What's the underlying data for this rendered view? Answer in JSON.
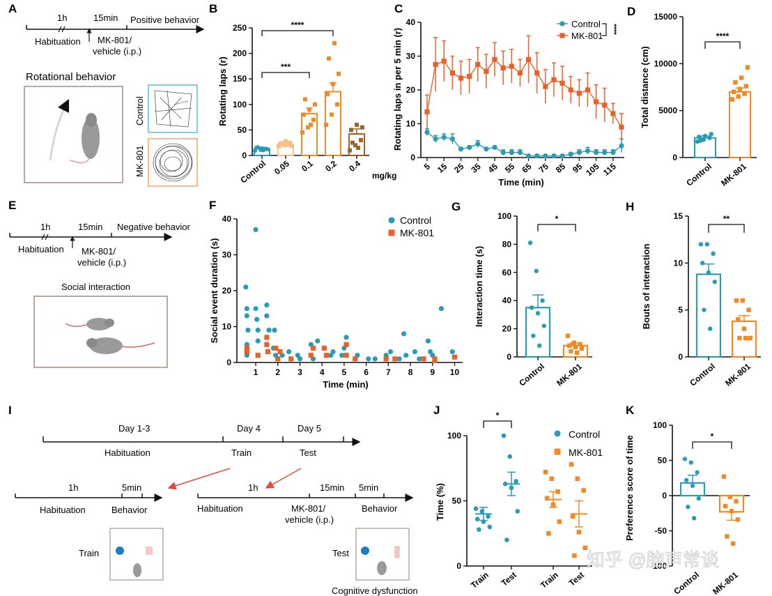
{
  "colors": {
    "control": "#2a9bb5",
    "mk801": "#f08a24",
    "mk801_dark": "#e8612a",
    "dose005": "#f7c08a",
    "dose04": "#a0642a",
    "gray": "#888888"
  },
  "panels": {
    "A": "A",
    "B": "B",
    "C": "C",
    "D": "D",
    "E": "E",
    "F": "F",
    "G": "G",
    "H": "H",
    "I": "I",
    "J": "J",
    "K": "K"
  },
  "schematics": {
    "A": {
      "t1": "1h",
      "t2": "15min",
      "t3": "Positive behavior",
      "hab": "Habituation",
      "drug1": "MK-801/",
      "drug2": "vehicle (i.p.)",
      "box_title": "Rotational behavior",
      "ctrl": "Control",
      "mk": "MK-801"
    },
    "E": {
      "t1": "1h",
      "t2": "15min",
      "t3": "Negative behavior",
      "hab": "Habituation",
      "drug1": "MK-801/",
      "drug2": "vehicle (i.p.)",
      "box_title": "Social interaction"
    },
    "I": {
      "d13": "Day 1-3",
      "d4": "Day 4",
      "d5": "Day 5",
      "hab": "Habituation",
      "train": "Train",
      "test": "Test",
      "l_1h": "1h",
      "l_5min": "5min",
      "l_hab": "Habituation",
      "l_beh": "Behavior",
      "r_1h": "1h",
      "r_15min": "15min",
      "r_5min": "5min",
      "r_hab": "Habituation",
      "r_drug1": "MK-801/",
      "r_drug2": "vehicle (i.p.)",
      "r_beh": "Behavior",
      "train_lbl": "Train",
      "test_lbl": "Test",
      "cog": "Cognitive dysfunction"
    }
  },
  "watermark": "知乎 @脑声常谈",
  "chart_data": [
    {
      "panel": "B",
      "type": "bar",
      "categories": [
        "Control",
        "0.05",
        "0.1",
        "0.2",
        "0.4"
      ],
      "unit": "mg/kg",
      "ylabel": "Rotating laps (r)",
      "ylim": [
        0,
        250
      ],
      "yticks": [
        0,
        50,
        100,
        150,
        200,
        250
      ],
      "values": [
        13,
        22,
        82,
        125,
        42
      ],
      "sem": [
        3,
        4,
        11,
        17,
        10
      ],
      "points": [
        [
          9,
          11,
          13,
          15,
          14,
          12,
          16,
          10
        ],
        [
          18,
          20,
          25,
          22,
          28,
          19,
          24,
          21
        ],
        [
          45,
          55,
          70,
          80,
          90,
          100,
          110,
          60
        ],
        [
          60,
          80,
          100,
          120,
          140,
          160,
          190,
          220
        ],
        [
          10,
          20,
          30,
          50,
          60,
          55,
          25,
          15
        ]
      ],
      "sig": [
        {
          "from": 0,
          "to": 2,
          "label": "***"
        },
        {
          "from": 0,
          "to": 3,
          "label": "****"
        }
      ]
    },
    {
      "panel": "C",
      "type": "line",
      "x": [
        5,
        10,
        15,
        20,
        25,
        30,
        35,
        40,
        45,
        50,
        55,
        60,
        65,
        70,
        75,
        80,
        85,
        90,
        95,
        100,
        105,
        110,
        115,
        120
      ],
      "xticks": [
        5,
        15,
        25,
        35,
        45,
        55,
        65,
        75,
        85,
        95,
        105,
        115
      ],
      "xlabel": "Time (min)",
      "ylabel": "Rotating laps in per 5 min (r)",
      "ylim": [
        0,
        40
      ],
      "yticks": [
        0,
        10,
        20,
        30,
        40
      ],
      "series": [
        {
          "name": "Control",
          "values": [
            7.5,
            5.5,
            6,
            5.5,
            2.5,
            3,
            4,
            2.5,
            3,
            1.5,
            1.5,
            1.5,
            0.5,
            0.5,
            0.5,
            0.5,
            0.5,
            1,
            1.5,
            2,
            1.5,
            1.5,
            1.5,
            3.5
          ],
          "err": [
            1,
            1,
            1,
            1.5,
            0.5,
            0.5,
            1,
            0.5,
            0.5,
            0.8,
            0.8,
            0.8,
            0.3,
            0.3,
            0.3,
            0.3,
            0.3,
            0.5,
            0.8,
            1,
            0.8,
            0.8,
            0.8,
            2
          ]
        },
        {
          "name": "MK-801",
          "values": [
            13.5,
            27.5,
            28.5,
            25,
            23.5,
            24,
            27.5,
            25.5,
            29,
            26.5,
            27,
            25,
            29,
            25,
            21,
            23,
            22,
            20,
            19,
            20,
            16.5,
            15.5,
            13,
            9
          ],
          "err": [
            5,
            8,
            6,
            5,
            5,
            5,
            5,
            5,
            5,
            5,
            5,
            4,
            7,
            6,
            5,
            5,
            5,
            4,
            4,
            5,
            5,
            5,
            3,
            4
          ]
        }
      ],
      "sig": "****"
    },
    {
      "panel": "D",
      "type": "bar",
      "categories": [
        "Control",
        "MK-801"
      ],
      "ylabel": "Total distance (cm)",
      "ylim": [
        0,
        15000
      ],
      "yticks": [
        0,
        5000,
        10000,
        15000
      ],
      "values": [
        2100,
        7000
      ],
      "sem": [
        200,
        400
      ],
      "points": [
        [
          1700,
          1900,
          2100,
          2200,
          2300,
          2500,
          1800
        ],
        [
          6200,
          6500,
          6800,
          7000,
          7300,
          7600,
          8000,
          8500,
          9600
        ]
      ],
      "sig": "****"
    },
    {
      "panel": "F",
      "type": "scatter",
      "xlabel": "Time (min)",
      "ylabel": "Social event duration (s)",
      "xlim": [
        0.4,
        10.3
      ],
      "ylim": [
        0,
        40
      ],
      "xticks": [
        1,
        2,
        3,
        4,
        5,
        6,
        7,
        8,
        9,
        10
      ],
      "yticks": [
        0,
        10,
        20,
        30,
        40
      ],
      "series": [
        {
          "name": "Control",
          "points": [
            [
              0.55,
              21
            ],
            [
              0.6,
              15
            ],
            [
              0.6,
              13
            ],
            [
              0.65,
              9
            ],
            [
              0.6,
              5
            ],
            [
              0.6,
              2
            ],
            [
              1.0,
              37
            ],
            [
              1.0,
              15
            ],
            [
              1.05,
              12
            ],
            [
              1.1,
              9
            ],
            [
              1.1,
              6
            ],
            [
              1.5,
              16
            ],
            [
              1.5,
              13
            ],
            [
              1.6,
              9
            ],
            [
              1.8,
              4
            ],
            [
              1.85,
              9
            ],
            [
              1.9,
              2
            ],
            [
              2.2,
              2
            ],
            [
              2.5,
              3
            ],
            [
              2.9,
              2
            ],
            [
              3.0,
              1
            ],
            [
              3.5,
              5
            ],
            [
              3.8,
              6
            ],
            [
              3.6,
              1
            ],
            [
              4.4,
              2
            ],
            [
              4.5,
              3
            ],
            [
              4.9,
              2
            ],
            [
              5.1,
              7
            ],
            [
              5.0,
              4
            ],
            [
              5.6,
              2
            ],
            [
              6.1,
              1
            ],
            [
              6.4,
              1
            ],
            [
              6.9,
              2
            ],
            [
              7.1,
              3
            ],
            [
              7.5,
              1
            ],
            [
              7.7,
              8
            ],
            [
              7.8,
              2
            ],
            [
              8.2,
              3
            ],
            [
              8.4,
              1
            ],
            [
              8.8,
              6
            ],
            [
              8.9,
              3
            ],
            [
              9.0,
              2
            ],
            [
              9.4,
              15
            ],
            [
              9.9,
              3
            ]
          ]
        },
        {
          "name": "MK-801",
          "points": [
            [
              0.6,
              4
            ],
            [
              0.6,
              3
            ],
            [
              1.1,
              2
            ],
            [
              1.5,
              7
            ],
            [
              1.5,
              5
            ],
            [
              1.55,
              3
            ],
            [
              1.9,
              4
            ],
            [
              2.1,
              3
            ],
            [
              2.0,
              1
            ],
            [
              2.6,
              1
            ],
            [
              3.5,
              2
            ],
            [
              3.6,
              4
            ],
            [
              4.1,
              4
            ],
            [
              4.2,
              2
            ],
            [
              5.1,
              5
            ],
            [
              5.1,
              2
            ],
            [
              5.5,
              1
            ],
            [
              6.9,
              1
            ],
            [
              7.3,
              1
            ],
            [
              8.6,
              1
            ],
            [
              9.1,
              1
            ],
            [
              9.1,
              0.5
            ],
            [
              10.0,
              1.5
            ]
          ]
        }
      ]
    },
    {
      "panel": "G",
      "type": "bar",
      "categories": [
        "Control",
        "MK-801"
      ],
      "ylabel": "Interaction time (s)",
      "ylim": [
        0,
        100
      ],
      "yticks": [
        0,
        20,
        40,
        60,
        80,
        100
      ],
      "values": [
        35,
        8
      ],
      "sem": [
        9,
        2
      ],
      "points": [
        [
          81,
          61,
          40,
          35,
          31,
          22,
          15,
          8
        ],
        [
          15,
          10,
          9,
          8,
          7,
          6,
          4,
          3
        ]
      ],
      "sig": "*"
    },
    {
      "panel": "H",
      "type": "bar",
      "categories": [
        "Control",
        "MK-801"
      ],
      "ylabel": "Bouts of interaction",
      "ylim": [
        0,
        15
      ],
      "yticks": [
        0,
        5,
        10,
        15
      ],
      "values": [
        8.8,
        3.8
      ],
      "sem": [
        1.1,
        0.6
      ],
      "points": [
        [
          12,
          12,
          11,
          10,
          9,
          8,
          5,
          3
        ],
        [
          6,
          6,
          5,
          4,
          3,
          2,
          2,
          2
        ]
      ],
      "sig": "**"
    },
    {
      "panel": "J",
      "type": "scatter",
      "categories": [
        "Train",
        "Test",
        "Train",
        "Test"
      ],
      "ylabel": "Time (%)",
      "ylim": [
        0,
        100
      ],
      "yticks": [
        0,
        50,
        100
      ],
      "series": [
        {
          "name": "Control",
          "mean": [
            40,
            63
          ],
          "sem": [
            5,
            9
          ],
          "points": [
            [
              44,
              42,
              38,
              36,
              34,
              30,
              28
            ],
            [
              100,
              84,
              65,
              63,
              60,
              42,
              20
            ]
          ]
        },
        {
          "name": "MK-801",
          "mean": [
            51,
            40
          ],
          "sem": [
            6,
            10
          ],
          "points": [
            [
              72,
              67,
              57,
              52,
              47,
              34,
              25
            ],
            [
              78,
              67,
              58,
              38,
              26,
              14,
              8
            ]
          ]
        }
      ],
      "sig": "*"
    },
    {
      "panel": "K",
      "type": "bar",
      "categories": [
        "Control",
        "MK-801"
      ],
      "ylabel": "Preference score of time",
      "ylim": [
        -100,
        100
      ],
      "yticks": [
        -100,
        -50,
        0,
        50,
        100
      ],
      "values": [
        18,
        -23
      ],
      "sem": [
        11,
        12
      ],
      "points": [
        [
          52,
          47,
          33,
          22,
          14,
          -4,
          -16,
          -32
        ],
        [
          27,
          -2,
          -8,
          -15,
          -22,
          -34,
          -58,
          -68
        ]
      ],
      "sig": "*"
    }
  ]
}
